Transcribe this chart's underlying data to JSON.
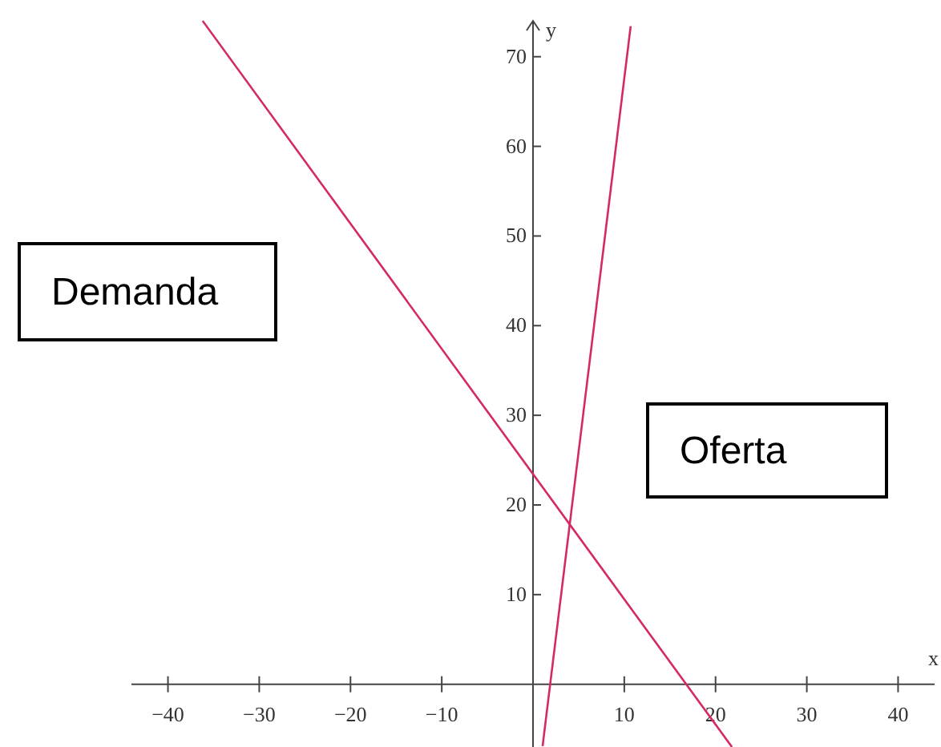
{
  "chart_data": {
    "type": "line",
    "xlabel": "x",
    "ylabel": "y",
    "xlim": [
      -44,
      44
    ],
    "ylim": [
      -7,
      74
    ],
    "xticks": [
      -40,
      -30,
      -20,
      -10,
      10,
      20,
      30,
      40
    ],
    "yticks": [
      10,
      20,
      30,
      40,
      50,
      60,
      70
    ],
    "grid": false,
    "line_style": "solid",
    "annotations": [
      "Demanda",
      "Oferta"
    ],
    "series": [
      {
        "color": "#d42a62",
        "x": [
          -36.2,
          21.8
        ],
        "values": [
          74,
          -7
        ]
      },
      {
        "color": "#d42a62",
        "x": [
          1.05,
          10.7
        ],
        "values": [
          -6.9,
          73.4
        ]
      }
    ]
  }
}
